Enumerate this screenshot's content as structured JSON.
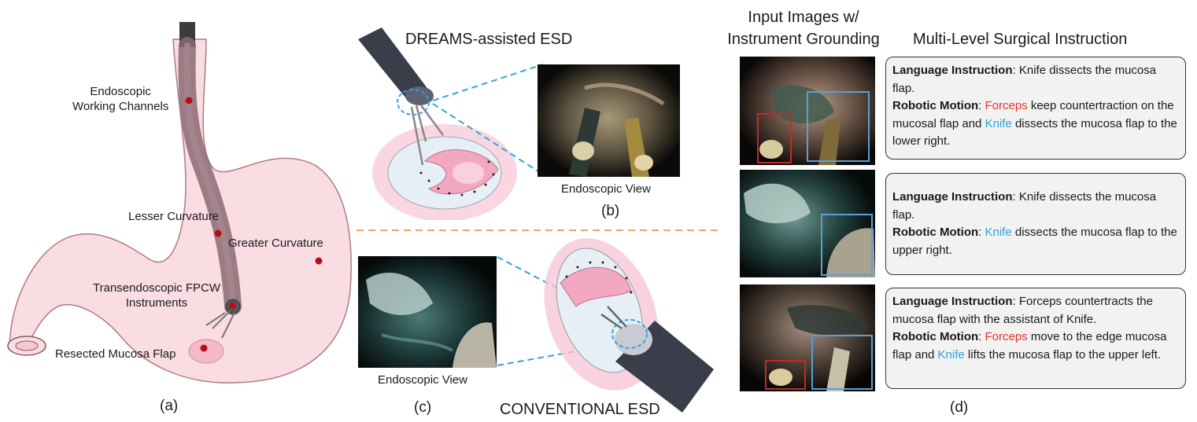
{
  "panel_a": {
    "labels": {
      "working_channels": "Endoscopic\nWorking Channels",
      "lesser_curvature": "Lesser Curvature",
      "greater_curvature": "Greater Curvature",
      "fpcw_instruments": "Transendoscopic FPCW\nInstruments",
      "mucosa_flap": "Resected Mucosa Flap"
    },
    "caption": "(a)"
  },
  "panel_b": {
    "title": "DREAMS-assisted ESD",
    "view_label": "Endoscopic View",
    "caption": "(b)"
  },
  "panel_c": {
    "title": "CONVENTIONAL ESD",
    "view_label": "Endoscopic View",
    "caption": "(c)"
  },
  "panel_d": {
    "header_images": "Input Images w/\nInstrument Grounding",
    "header_instruction": "Multi-Level Surgical Instruction",
    "caption": "(d)",
    "entries": [
      {
        "lang_title": "Language Instruction",
        "lang_text": "Knife dissects the mucosa flap.",
        "motion_title": "Robotic Motion",
        "motion_parts": [
          {
            "t": "Forceps",
            "c": "red"
          },
          {
            "t": " keep countertraction on the mucosal flap and ",
            "c": ""
          },
          {
            "t": "Knife",
            "c": "blue"
          },
          {
            "t": " dissects the mucosa flap to the lower right.",
            "c": ""
          }
        ]
      },
      {
        "lang_title": "Language Instruction",
        "lang_text": "Knife dissects the mucosa flap.",
        "motion_title": "Robotic Motion",
        "motion_parts": [
          {
            "t": "Knife",
            "c": "blue"
          },
          {
            "t": " dissects the mucosa flap to the upper right.",
            "c": ""
          }
        ]
      },
      {
        "lang_title": "Language Instruction",
        "lang_text": "Forceps countertracts the mucosa flap with the assistant of Knife.",
        "motion_title": "Robotic Motion",
        "motion_parts": [
          {
            "t": "Forceps",
            "c": "red"
          },
          {
            "t": " move to the edge mucosa flap and ",
            "c": ""
          },
          {
            "t": "Knife",
            "c": "blue"
          },
          {
            "t": " lifts the mucosa flap to the upper left.",
            "c": ""
          }
        ]
      }
    ]
  },
  "colors": {
    "stomach_fill": "#f9dde3",
    "stomach_stroke": "#b07a84",
    "marker": "#b80f16",
    "forceps": "#e8332a",
    "knife": "#2ba3d9",
    "divider": "#f0a070"
  }
}
